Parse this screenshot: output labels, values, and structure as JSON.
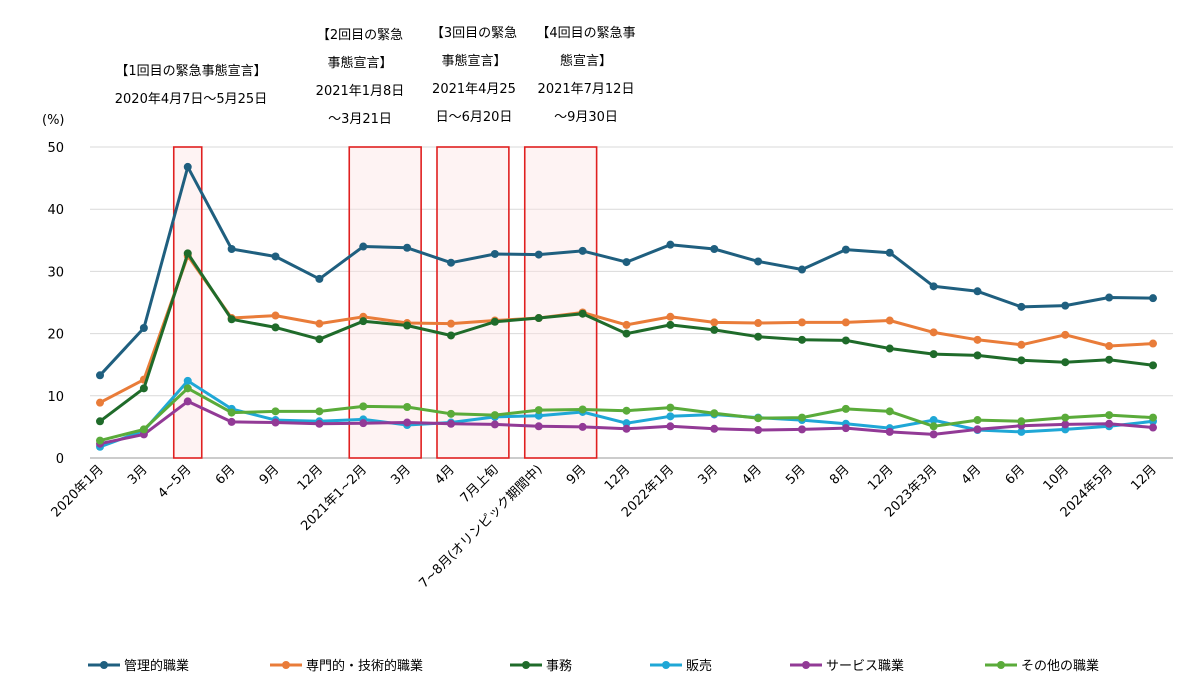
{
  "chart_data": {
    "type": "line",
    "ylabel": "(%)",
    "ylim": [
      0,
      50
    ],
    "yticks": [
      0,
      10,
      20,
      30,
      40,
      50
    ],
    "grid": true,
    "legend_position": "bottom",
    "categories": [
      "2020年1月",
      "3月",
      "4~5月",
      "6月",
      "9月",
      "12月",
      "2021年1~2月",
      "3月",
      "4月",
      "7月上旬",
      "7~8月(オリンピック期間中)",
      "9月",
      "12月",
      "2022年1月",
      "3月",
      "4月",
      "5月",
      "8月",
      "12月",
      "2023年3月",
      "4月",
      "6月",
      "10月",
      "2024年5月",
      "12月"
    ],
    "series": [
      {
        "name": "管理的職業",
        "color": "#1f5f7f",
        "values": [
          13.3,
          20.9,
          46.8,
          33.6,
          32.4,
          28.8,
          34.0,
          33.8,
          31.4,
          32.8,
          32.7,
          33.3,
          31.5,
          34.3,
          33.6,
          31.6,
          30.3,
          33.5,
          33.0,
          27.6,
          26.8,
          24.3,
          24.5,
          25.8,
          25.7
        ]
      },
      {
        "name": "専門的・技術的職業",
        "color": "#e97c39",
        "values": [
          8.9,
          12.6,
          32.5,
          22.5,
          22.9,
          21.6,
          22.7,
          21.7,
          21.6,
          22.1,
          22.5,
          23.4,
          21.4,
          22.7,
          21.8,
          21.7,
          21.8,
          21.8,
          22.1,
          20.2,
          19.0,
          18.2,
          19.8,
          18.0,
          18.4
        ]
      },
      {
        "name": "事務",
        "color": "#1f6b2a",
        "values": [
          5.9,
          11.2,
          32.9,
          22.3,
          21.0,
          19.1,
          22.0,
          21.3,
          19.7,
          21.9,
          22.5,
          23.2,
          20.0,
          21.4,
          20.6,
          19.5,
          19.0,
          18.9,
          17.6,
          16.7,
          16.5,
          15.7,
          15.4,
          15.8,
          14.9
        ]
      },
      {
        "name": "販売",
        "color": "#1fa7d6",
        "values": [
          1.8,
          4.4,
          12.4,
          7.9,
          6.1,
          5.9,
          6.2,
          5.3,
          5.7,
          6.6,
          6.8,
          7.4,
          5.6,
          6.7,
          7.0,
          6.5,
          6.1,
          5.5,
          4.8,
          6.1,
          4.5,
          4.2,
          4.6,
          5.1,
          5.9
        ]
      },
      {
        "name": "サービス職業",
        "color": "#923a96",
        "values": [
          2.3,
          3.8,
          9.1,
          5.8,
          5.7,
          5.5,
          5.6,
          5.7,
          5.5,
          5.4,
          5.1,
          5.0,
          4.7,
          5.1,
          4.7,
          4.5,
          4.6,
          4.8,
          4.2,
          3.8,
          4.6,
          5.2,
          5.4,
          5.5,
          4.9
        ]
      },
      {
        "name": "その他の職業",
        "color": "#5aab3a",
        "values": [
          2.8,
          4.6,
          11.2,
          7.3,
          7.5,
          7.5,
          8.3,
          8.2,
          7.1,
          6.9,
          7.7,
          7.8,
          7.6,
          8.1,
          7.2,
          6.4,
          6.5,
          7.9,
          7.5,
          5.1,
          6.1,
          5.9,
          6.5,
          6.9,
          6.5
        ]
      }
    ],
    "highlight_ranges": [
      {
        "from_category_index": 2,
        "to_category_index": 2,
        "ymax": 50
      },
      {
        "from_category_index": 6,
        "to_category_index": 7,
        "ymax": 50
      },
      {
        "from_category_index": 8,
        "to_category_index": 9,
        "ymax": 50
      },
      {
        "from_category_index": 10,
        "to_category_index": 11,
        "ymax": 50
      }
    ]
  },
  "annotations": [
    {
      "id": "ann1",
      "lines": [
        "【1回目の緊急事態宣言】",
        "2020年4月7日～5月25日"
      ]
    },
    {
      "id": "ann2",
      "lines": [
        "【2回目の緊急",
        "事態宣言】",
        "2021年1月8日",
        "～3月21日"
      ]
    },
    {
      "id": "ann3",
      "lines": [
        "【3回目の緊急",
        "事態宣言】",
        "2021年4月25",
        "日～6月20日"
      ]
    },
    {
      "id": "ann4",
      "lines": [
        "【4回目の緊急事",
        "態宣言】",
        "2021年7月12日",
        "～9月30日"
      ]
    }
  ]
}
